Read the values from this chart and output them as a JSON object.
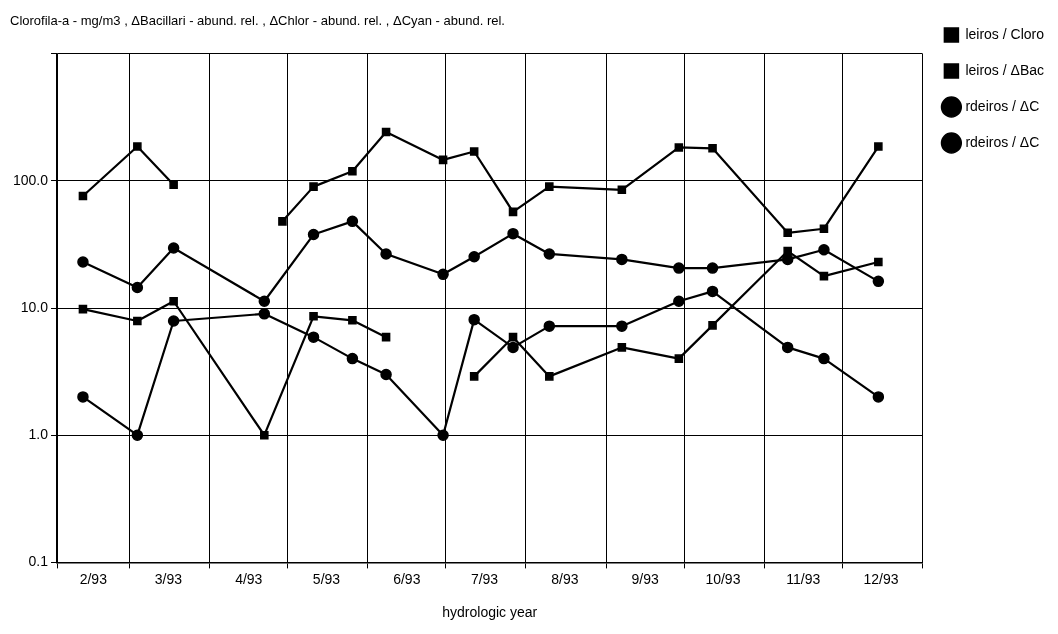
{
  "chart_data": {
    "type": "line",
    "title": "Clorofila-a - mg/m3 , ΔBacillari - abund. rel. , ΔChlor - abund. rel. , ΔCyan - abund. rel.",
    "xlabel": "hydrologic year",
    "x": [
      "1993-02-11",
      "1993-03-04",
      "1993-03-18",
      "1993-04-22",
      "1993-05-11",
      "1993-05-26",
      "1993-06-08",
      "1993-06-30",
      "1993-07-12",
      "1993-07-27",
      "1993-08-10",
      "1993-09-07",
      "1993-09-29",
      "1993-10-12",
      "1993-11-10",
      "1993-11-24",
      "1993-12-15"
    ],
    "series": [
      {
        "name": "leiros / Cloro",
        "color": "#000000",
        "marker": "square",
        "x": [
          "1993-02-11",
          "1993-03-04",
          "1993-03-18",
          "1993-04-22",
          "1993-04-29",
          "1993-05-11",
          "1993-05-26",
          "1993-06-08",
          "1993-06-30",
          "1993-07-12",
          "1993-07-27",
          "1993-08-10",
          "1993-09-07",
          "1993-09-29",
          "1993-10-12",
          "1993-11-10",
          "1993-11-24",
          "1993-12-15"
        ],
        "values": [
          76,
          186,
          93,
          null,
          48,
          90,
          119,
          242,
          146,
          170,
          57,
          90,
          85,
          183,
          180,
          39,
          42,
          186
        ]
      },
      {
        "name": "leiros / ΔBac",
        "color": "#000000",
        "marker": "square",
        "values": [
          9.8,
          7.9,
          11.3,
          1.0,
          8.6,
          8.0,
          5.9,
          null,
          2.9,
          5.9,
          2.9,
          4.9,
          4.0,
          7.3,
          28,
          17.8,
          23
        ]
      },
      {
        "name": "rdeiros / ΔC",
        "color": "#000000",
        "marker": "circle",
        "values": [
          23,
          14.5,
          29.6,
          11.3,
          37.8,
          48,
          26.6,
          18.4,
          25.3,
          38.4,
          26.6,
          24.1,
          20.6,
          20.6,
          24.1,
          28.7,
          16.2
        ]
      },
      {
        "name": "rdeiros / ΔC",
        "color": "#000000",
        "marker": "circle",
        "values": [
          2.0,
          1.0,
          7.9,
          9.0,
          5.9,
          4.0,
          3.0,
          1.0,
          8.1,
          4.9,
          7.2,
          7.2,
          11.3,
          13.5,
          4.9,
          4.0,
          2.0
        ]
      }
    ],
    "log": "y",
    "ylim": [
      0.1,
      1000
    ],
    "yticks": [
      0.1,
      {
        "value": 1,
        "label": "1.0"
      },
      {
        "value": 10,
        "label": "10.0"
      },
      {
        "value": 100,
        "label": "100.0"
      },
      {
        "value": 1000,
        "label": null
      }
    ],
    "xlim": [
      "1993-02-01",
      "1994-01-01"
    ],
    "xticks": [
      {
        "value": "1993-02-01",
        "label": null
      },
      {
        "value": "1993-02-15",
        "label": "2/93"
      },
      {
        "value": "1993-03-01",
        "label": null
      },
      {
        "value": "1993-03-16",
        "label": "3/93"
      },
      {
        "value": "1993-04-01",
        "label": null
      },
      {
        "value": "1993-04-16",
        "label": "4/93"
      },
      {
        "value": "1993-05-01",
        "label": null
      },
      {
        "value": "1993-05-16",
        "label": "5/93"
      },
      {
        "value": "1993-06-01",
        "label": null
      },
      {
        "value": "1993-06-16",
        "label": "6/93"
      },
      {
        "value": "1993-07-01",
        "label": null
      },
      {
        "value": "1993-07-16",
        "label": "7/93"
      },
      {
        "value": "1993-08-01",
        "label": null
      },
      {
        "value": "1993-08-16",
        "label": "8/93"
      },
      {
        "value": "1993-09-01",
        "label": null
      },
      {
        "value": "1993-09-16",
        "label": "9/93"
      },
      {
        "value": "1993-10-01",
        "label": null
      },
      {
        "value": "1993-10-16",
        "label": "10/93"
      },
      {
        "value": "1993-11-01",
        "label": null
      },
      {
        "value": "1993-11-16",
        "label": "11/93"
      },
      {
        "value": "1993-12-01",
        "label": null
      },
      {
        "value": "1993-12-16",
        "label": "12/93"
      },
      {
        "value": "1994-01-01",
        "label": null
      }
    ],
    "grid": true,
    "legend": "top right",
    "line_style": "solid"
  }
}
